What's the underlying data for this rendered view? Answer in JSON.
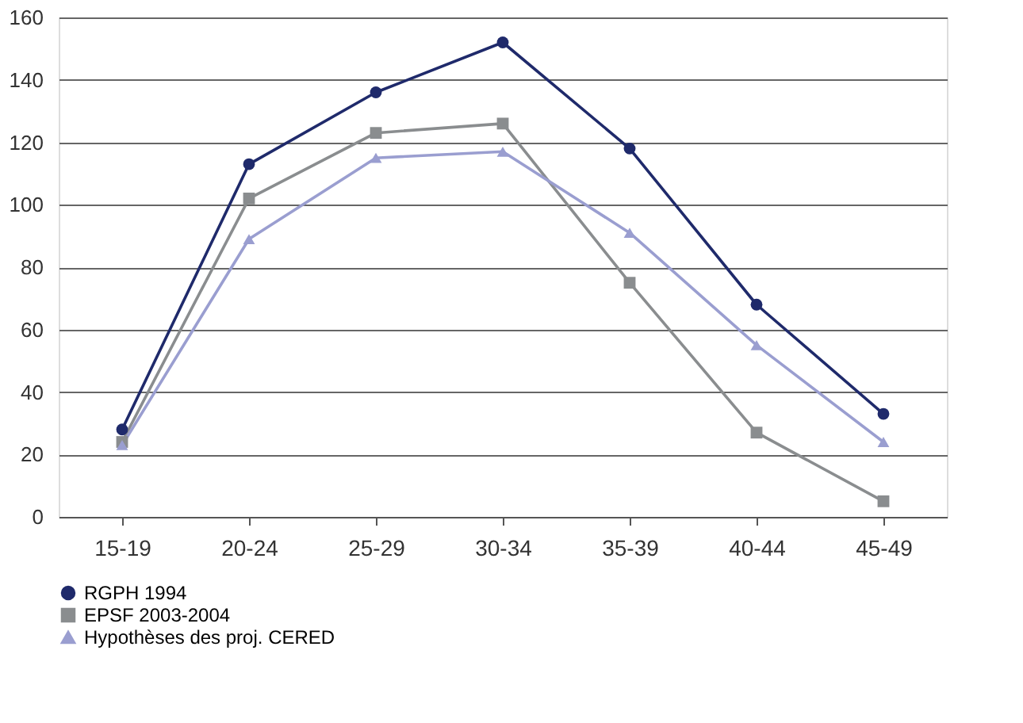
{
  "chart_data": {
    "type": "line",
    "categories": [
      "15-19",
      "20-24",
      "25-29",
      "30-34",
      "35-39",
      "40-44",
      "45-49"
    ],
    "series": [
      {
        "name": "RGPH 1994",
        "color": "#1f2a6b",
        "marker": "circle",
        "values": [
          28,
          113,
          136,
          152,
          118,
          68,
          33
        ]
      },
      {
        "name": "EPSF 2003-2004",
        "color": "#8a8d8f",
        "marker": "square",
        "values": [
          24,
          102,
          123,
          126,
          75,
          27,
          5
        ]
      },
      {
        "name": "Hypothèses des proj. CERED",
        "color": "#9a9ed0",
        "marker": "triangle",
        "values": [
          23,
          89,
          115,
          117,
          91,
          55,
          24
        ]
      }
    ],
    "ylim": [
      0,
      160
    ],
    "yticks": [
      0,
      20,
      40,
      60,
      80,
      100,
      120,
      140,
      160
    ],
    "grid": "y",
    "legend": "bottom",
    "line_style": "solid"
  }
}
